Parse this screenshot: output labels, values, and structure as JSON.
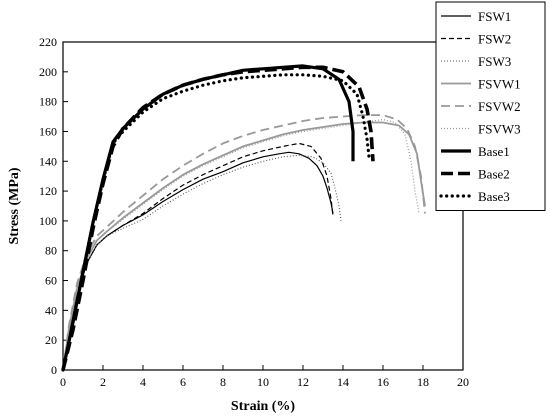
{
  "chart_data": {
    "type": "line",
    "title": "",
    "xlabel": "Strain (%)",
    "ylabel": "Stress (MPa)",
    "xlim": [
      0,
      20
    ],
    "ylim": [
      0,
      220
    ],
    "xticks": [
      0,
      2,
      4,
      6,
      8,
      10,
      12,
      14,
      16,
      18,
      20
    ],
    "yticks": [
      0,
      20,
      40,
      60,
      80,
      100,
      120,
      140,
      160,
      180,
      200,
      220
    ],
    "grid": false,
    "legend_position": "top-right",
    "series": [
      {
        "name": "FSW1",
        "color": "#000000",
        "style": "solid-thin",
        "x": [
          0,
          0.3,
          0.7,
          1.2,
          1.7,
          2.2,
          3,
          4,
          5,
          6,
          7,
          8,
          9,
          10,
          10.8,
          11.3,
          11.8,
          12.3,
          12.7,
          13,
          13.2,
          13.4,
          13.5
        ],
        "y": [
          0,
          25,
          50,
          72,
          84,
          90,
          97,
          104,
          113,
          121,
          128,
          133,
          139,
          143,
          145,
          146,
          145,
          142,
          137,
          130,
          122,
          112,
          105
        ]
      },
      {
        "name": "FSW2",
        "color": "#000000",
        "style": "dash",
        "x": [
          0,
          0.3,
          0.7,
          1.2,
          1.7,
          2.2,
          3,
          4,
          5,
          6,
          7,
          8,
          9,
          10,
          11,
          11.8,
          12.4,
          12.9,
          13.2,
          13.4,
          13.5
        ],
        "y": [
          0,
          25,
          50,
          72,
          84,
          90,
          97,
          105,
          115,
          124,
          131,
          137,
          143,
          147,
          150,
          152,
          150,
          142,
          130,
          115,
          103
        ]
      },
      {
        "name": "FSW3",
        "color": "#555555",
        "style": "dot-fine",
        "x": [
          0,
          0.3,
          0.7,
          1.2,
          1.7,
          2.2,
          3,
          4,
          5,
          6,
          7,
          8,
          9,
          10,
          11,
          11.8,
          12.5,
          13,
          13.4,
          13.6,
          13.8,
          13.9
        ],
        "y": [
          0,
          25,
          50,
          72,
          84,
          90,
          95,
          101,
          110,
          118,
          125,
          131,
          136,
          140,
          143,
          144,
          143,
          139,
          132,
          122,
          110,
          100
        ]
      },
      {
        "name": "FSVW1",
        "color": "#999999",
        "style": "solid-grey",
        "x": [
          0,
          0.3,
          0.7,
          1.2,
          1.7,
          2.2,
          3,
          4,
          5,
          6,
          7,
          8,
          9,
          10,
          11,
          12,
          13,
          14,
          15,
          16,
          16.8,
          17.3,
          17.7,
          17.9,
          18.1
        ],
        "y": [
          0,
          28,
          55,
          75,
          87,
          93,
          102,
          112,
          122,
          131,
          138,
          144,
          150,
          154,
          158,
          161,
          163,
          165,
          166,
          166,
          164,
          158,
          145,
          127,
          110
        ]
      },
      {
        "name": "FSVW2",
        "color": "#999999",
        "style": "dash-grey",
        "x": [
          0,
          0.3,
          0.7,
          1.2,
          1.7,
          2.2,
          3,
          4,
          5,
          6,
          7,
          8,
          9,
          10,
          11,
          12,
          13,
          14,
          15,
          16,
          16.7,
          17.2,
          17.6,
          17.9,
          18.1
        ],
        "y": [
          0,
          30,
          58,
          78,
          90,
          96,
          106,
          117,
          128,
          137,
          145,
          152,
          157,
          161,
          164,
          167,
          169,
          170,
          171,
          171,
          168,
          162,
          150,
          130,
          105
        ]
      },
      {
        "name": "FSVW3",
        "color": "#999999",
        "style": "dot-grey",
        "x": [
          0,
          0.3,
          0.7,
          1.2,
          1.7,
          2.2,
          3,
          4,
          5,
          6,
          7,
          8,
          9,
          10,
          11,
          12,
          13,
          14,
          15,
          16,
          16.6,
          17.1,
          17.4,
          17.6,
          17.8
        ],
        "y": [
          0,
          28,
          55,
          75,
          87,
          93,
          101,
          111,
          121,
          130,
          137,
          143,
          149,
          153,
          157,
          160,
          162,
          164,
          166,
          168,
          166,
          158,
          140,
          120,
          105
        ]
      },
      {
        "name": "Base1",
        "color": "#000000",
        "style": "solid-thick",
        "x": [
          0,
          0.5,
          1,
          1.5,
          2,
          2.5,
          3,
          4,
          5,
          6,
          7,
          8,
          9,
          10,
          11,
          12,
          13,
          13.8,
          14.3,
          14.5,
          14.5
        ],
        "y": [
          0,
          32,
          66,
          99,
          128,
          153,
          162,
          175,
          185,
          191,
          195,
          198,
          201,
          202,
          203,
          204,
          202,
          195,
          180,
          160,
          140
        ]
      },
      {
        "name": "Base2",
        "color": "#000000",
        "style": "dash-thick",
        "x": [
          0,
          0.5,
          1,
          1.5,
          2,
          2.5,
          3,
          4,
          5,
          6,
          7,
          8,
          9,
          10,
          11,
          12,
          13,
          14,
          14.8,
          15.2,
          15.4,
          15.5
        ],
        "y": [
          0,
          27,
          60,
          95,
          125,
          150,
          162,
          176,
          185,
          191,
          195,
          198,
          200,
          201,
          202,
          203,
          203,
          200,
          190,
          175,
          160,
          140
        ]
      },
      {
        "name": "Base3",
        "color": "#000000",
        "style": "dot-thick",
        "x": [
          0,
          0.5,
          1,
          1.5,
          2,
          2.5,
          3,
          4,
          5,
          6,
          7,
          8,
          9,
          10,
          11,
          12,
          13,
          14,
          14.7,
          15,
          15.2,
          15.3
        ],
        "y": [
          0,
          32,
          66,
          99,
          127,
          152,
          160,
          173,
          182,
          187,
          191,
          194,
          196,
          197,
          198,
          198,
          197,
          194,
          185,
          170,
          155,
          143
        ]
      }
    ]
  }
}
